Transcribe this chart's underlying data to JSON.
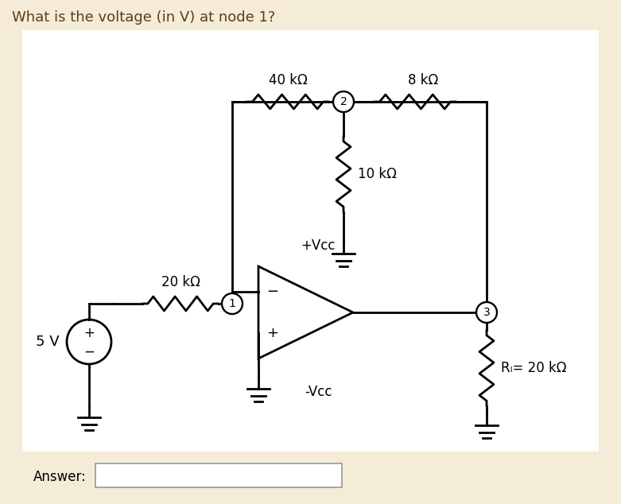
{
  "title": "What is the voltage (in V) at node 1?",
  "title_color": "#5a3e1b",
  "bg_color": "#f5ecd7",
  "circuit_bg": "#ffffff",
  "answer_label": "Answer:",
  "line_color": "#000000",
  "line_width": 2.0,
  "resistor_40k_label": "40 kΩ",
  "resistor_8k_label": "8 kΩ",
  "resistor_10k_label": "10 kΩ",
  "resistor_20k_label": "20 kΩ",
  "resistor_RL_label": "Rₗ= 20 kΩ",
  "voltage_source_label": "5 V",
  "vcc_pos_label": "+Vcc",
  "vcc_neg_label": "-Vcc",
  "node1_label": "1",
  "node2_label": "2",
  "node3_label": "3",
  "font_size_title": 13,
  "font_size_labels": 12,
  "font_size_nodes": 10
}
